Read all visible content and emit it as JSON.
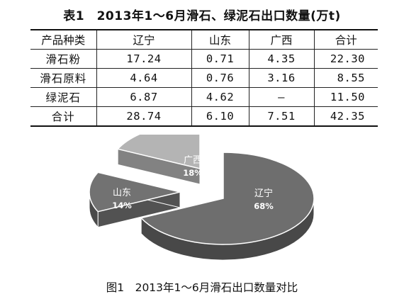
{
  "table": {
    "title": "表1　2013年1～6月滑石、绿泥石出口数量(万t)",
    "headers": [
      "产品种类",
      "辽宁",
      "山东",
      "广西",
      "合计"
    ],
    "rows": [
      {
        "name": "滑石粉",
        "liaoning": "17.24",
        "shandong": "0.71",
        "guangxi": "4.35",
        "total": "22.30"
      },
      {
        "name": "滑石原料",
        "liaoning": "4.64",
        "shandong": "0.76",
        "guangxi": "3.16",
        "total": "8.55"
      },
      {
        "name": "绿泥石",
        "liaoning": "6.87",
        "shandong": "4.62",
        "guangxi": "–",
        "total": "11.50"
      },
      {
        "name": "合计",
        "liaoning": "28.74",
        "shandong": "6.10",
        "guangxi": "7.51",
        "total": "42.35"
      }
    ]
  },
  "figure": {
    "caption": "图1　2013年1～6月滑石出口数量对比"
  },
  "chart_data": {
    "type": "pie",
    "title": "",
    "slices": [
      {
        "label": "辽宁",
        "value": 68,
        "pct_label": "68%",
        "color": "#6e6e6e"
      },
      {
        "label": "山东",
        "value": 14,
        "pct_label": "14%",
        "color": "#727272"
      },
      {
        "label": "广西",
        "value": 18,
        "pct_label": "18%",
        "color": "#b4b4b4"
      }
    ],
    "style": "3d-exploded"
  }
}
